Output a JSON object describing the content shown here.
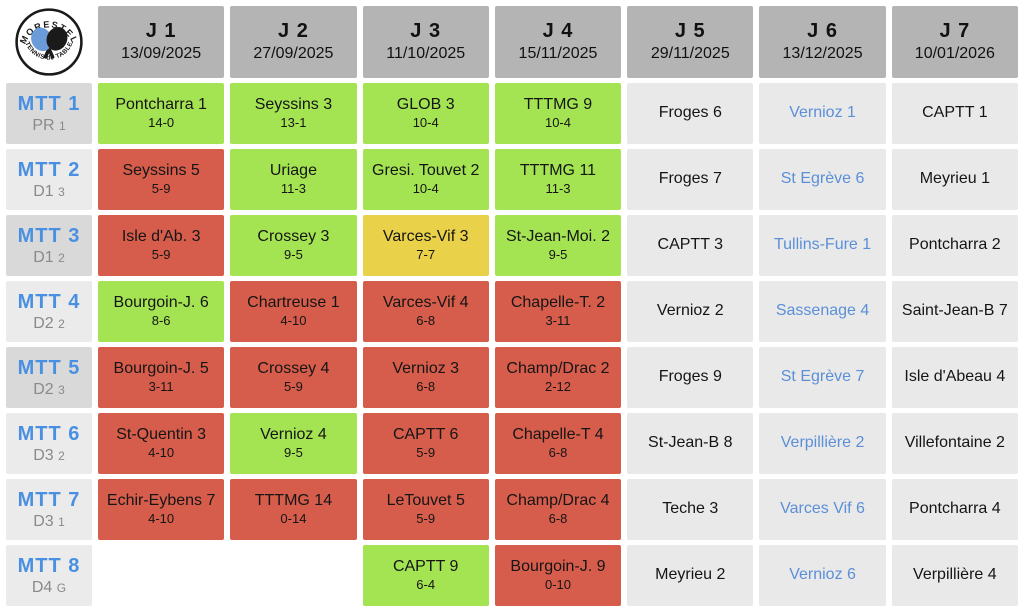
{
  "logo": {
    "top_text": "MORESTEL",
    "bottom_text": "TENNIS de TABLE"
  },
  "columns": [
    {
      "label": "J 1",
      "date": "13/09/2025"
    },
    {
      "label": "J 2",
      "date": "27/09/2025"
    },
    {
      "label": "J 3",
      "date": "11/10/2025"
    },
    {
      "label": "J 4",
      "date": "15/11/2025"
    },
    {
      "label": "J 5",
      "date": "29/11/2025"
    },
    {
      "label": "J 6",
      "date": "13/12/2025"
    },
    {
      "label": "J 7",
      "date": "10/01/2026"
    }
  ],
  "rows": [
    {
      "team": "MTT 1",
      "division": "PR",
      "division_sub": "1",
      "shade": "dark",
      "cells": [
        {
          "opponent": "Pontcharra 1",
          "score": "14-0",
          "result": "win"
        },
        {
          "opponent": "Seyssins 3",
          "score": "13-1",
          "result": "win"
        },
        {
          "opponent": "GLOB 3",
          "score": "10-4",
          "result": "win"
        },
        {
          "opponent": "TTTMG 9",
          "score": "10-4",
          "result": "win"
        },
        {
          "opponent": "Froges 6",
          "result": "upcoming"
        },
        {
          "opponent": "Vernioz 1",
          "result": "upcoming",
          "away": true
        },
        {
          "opponent": "CAPTT 1",
          "result": "upcoming"
        }
      ]
    },
    {
      "team": "MTT 2",
      "division": "D1",
      "division_sub": "3",
      "shade": "light",
      "cells": [
        {
          "opponent": "Seyssins 5",
          "score": "5-9",
          "result": "loss"
        },
        {
          "opponent": "Uriage",
          "score": "11-3",
          "result": "win"
        },
        {
          "opponent": "Gresi. Touvet 2",
          "score": "10-4",
          "result": "win"
        },
        {
          "opponent": "TTTMG 11",
          "score": "11-3",
          "result": "win"
        },
        {
          "opponent": "Froges 7",
          "result": "upcoming"
        },
        {
          "opponent": "St Egrève 6",
          "result": "upcoming",
          "away": true
        },
        {
          "opponent": "Meyrieu 1",
          "result": "upcoming"
        }
      ]
    },
    {
      "team": "MTT 3",
      "division": "D1",
      "division_sub": "2",
      "shade": "dark",
      "cells": [
        {
          "opponent": "Isle d'Ab. 3",
          "score": "5-9",
          "result": "loss"
        },
        {
          "opponent": "Crossey 3",
          "score": "9-5",
          "result": "win"
        },
        {
          "opponent": "Varces-Vif 3",
          "score": "7-7",
          "result": "draw"
        },
        {
          "opponent": "St-Jean-Moi. 2",
          "score": "9-5",
          "result": "win"
        },
        {
          "opponent": "CAPTT 3",
          "result": "upcoming"
        },
        {
          "opponent": "Tullins-Fure 1",
          "result": "upcoming",
          "away": true
        },
        {
          "opponent": "Pontcharra 2",
          "result": "upcoming"
        }
      ]
    },
    {
      "team": "MTT 4",
      "division": "D2",
      "division_sub": "2",
      "shade": "light",
      "cells": [
        {
          "opponent": "Bourgoin-J. 6",
          "score": "8-6",
          "result": "win"
        },
        {
          "opponent": "Chartreuse 1",
          "score": "4-10",
          "result": "loss"
        },
        {
          "opponent": "Varces-Vif 4",
          "score": "6-8",
          "result": "loss"
        },
        {
          "opponent": "Chapelle-T. 2",
          "score": "3-11",
          "result": "loss"
        },
        {
          "opponent": "Vernioz 2",
          "result": "upcoming"
        },
        {
          "opponent": "Sassenage 4",
          "result": "upcoming",
          "away": true
        },
        {
          "opponent": "Saint-Jean-B 7",
          "result": "upcoming"
        }
      ]
    },
    {
      "team": "MTT 5",
      "division": "D2",
      "division_sub": "3",
      "shade": "dark",
      "cells": [
        {
          "opponent": "Bourgoin-J. 5",
          "score": "3-11",
          "result": "loss"
        },
        {
          "opponent": "Crossey 4",
          "score": "5-9",
          "result": "loss"
        },
        {
          "opponent": "Vernioz 3",
          "score": "6-8",
          "result": "loss"
        },
        {
          "opponent": "Champ/Drac 2",
          "score": "2-12",
          "result": "loss"
        },
        {
          "opponent": "Froges 9",
          "result": "upcoming"
        },
        {
          "opponent": "St Egrève 7",
          "result": "upcoming",
          "away": true
        },
        {
          "opponent": "Isle d'Abeau 4",
          "result": "upcoming"
        }
      ]
    },
    {
      "team": "MTT 6",
      "division": "D3",
      "division_sub": "2",
      "shade": "light",
      "cells": [
        {
          "opponent": "St-Quentin 3",
          "score": "4-10",
          "result": "loss"
        },
        {
          "opponent": "Vernioz 4",
          "score": "9-5",
          "result": "win"
        },
        {
          "opponent": "CAPTT 6",
          "score": "5-9",
          "result": "loss"
        },
        {
          "opponent": "Chapelle-T 4",
          "score": "6-8",
          "result": "loss"
        },
        {
          "opponent": "St-Jean-B 8",
          "result": "upcoming"
        },
        {
          "opponent": "Verpillière 2",
          "result": "upcoming",
          "away": true
        },
        {
          "opponent": "Villefontaine 2",
          "result": "upcoming"
        }
      ]
    },
    {
      "team": "MTT 7",
      "division": "D3",
      "division_sub": "1",
      "shade": "light",
      "cells": [
        {
          "opponent": "Echir-Eybens 7",
          "score": "4-10",
          "result": "loss"
        },
        {
          "opponent": "TTTMG 14",
          "score": "0-14",
          "result": "loss"
        },
        {
          "opponent": "LeTouvet 5",
          "score": "5-9",
          "result": "loss"
        },
        {
          "opponent": "Champ/Drac 4",
          "score": "6-8",
          "result": "loss"
        },
        {
          "opponent": "Teche 3",
          "result": "upcoming"
        },
        {
          "opponent": "Varces Vif 6",
          "result": "upcoming",
          "away": true
        },
        {
          "opponent": "Pontcharra 4",
          "result": "upcoming"
        }
      ]
    },
    {
      "team": "MTT 8",
      "division": "D4",
      "division_sub": "G",
      "shade": "light",
      "cells": [
        {
          "opponent": "",
          "result": "none"
        },
        {
          "opponent": "",
          "result": "none"
        },
        {
          "opponent": "CAPTT 9",
          "score": "6-4",
          "result": "win"
        },
        {
          "opponent": "Bourgoin-J. 9",
          "score": "0-10",
          "result": "loss"
        },
        {
          "opponent": "Meyrieu 2",
          "result": "upcoming"
        },
        {
          "opponent": "Vernioz 6",
          "result": "upcoming",
          "away": true
        },
        {
          "opponent": "Verpillière 4",
          "result": "upcoming"
        }
      ]
    }
  ],
  "colors": {
    "win": "#a4e452",
    "loss": "#d65d4b",
    "draw": "#e9d14a",
    "upcoming": "#e9e9e9",
    "header_bg": "#b4b4b4",
    "row_header_dark": "#d9d9d9",
    "row_header_light": "#ebebeb",
    "team_blue": "#4a90e2",
    "away_blue": "#5b8fd8",
    "division_gray": "#8a8a8a",
    "paddle_blue": "#6b9bd8",
    "text_dark": "#151515"
  }
}
